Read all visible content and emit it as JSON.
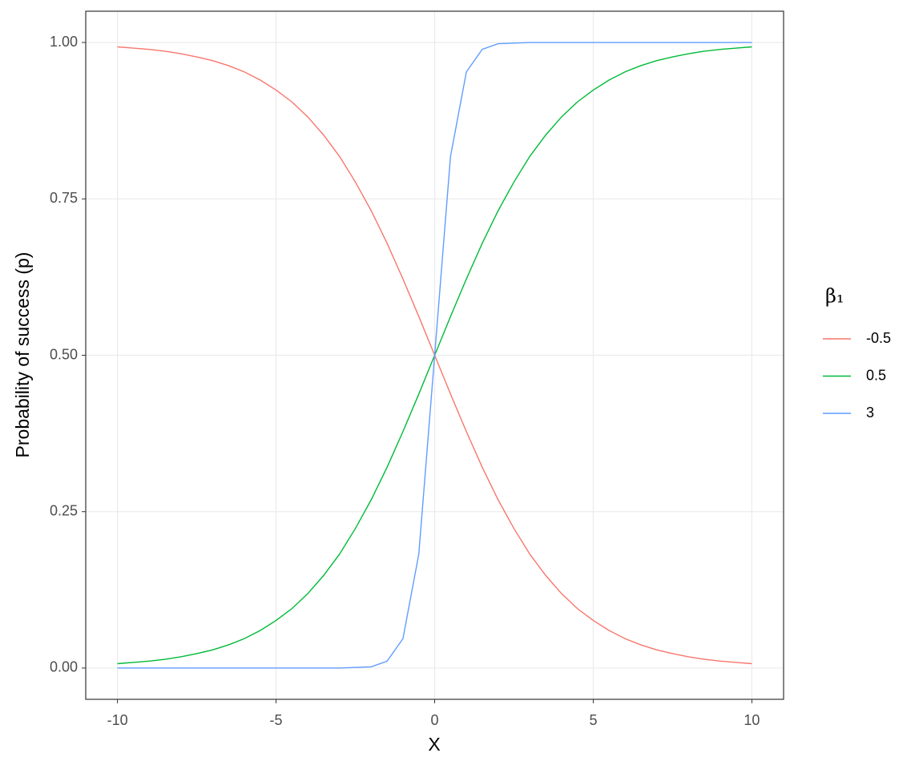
{
  "chart_data": {
    "type": "line",
    "x_label": "X",
    "y_label": "Probability of success (p)",
    "legend_title": "β₁",
    "x": [
      -10,
      -9.5,
      -9,
      -8.5,
      -8,
      -7.5,
      -7,
      -6.5,
      -6,
      -5.5,
      -5,
      -4.5,
      -4,
      -3.5,
      -3,
      -2.5,
      -2,
      -1.5,
      -1,
      -0.5,
      0,
      0.5,
      1,
      1.5,
      2,
      2.5,
      3,
      3.5,
      4,
      4.5,
      5,
      5.5,
      6,
      6.5,
      7,
      7.5,
      8,
      8.5,
      9,
      9.5,
      10
    ],
    "series": [
      {
        "name": "-0.5",
        "color": "#F8766D",
        "values": [
          0.993,
          0.991,
          0.989,
          0.986,
          0.982,
          0.977,
          0.971,
          0.963,
          0.953,
          0.94,
          0.924,
          0.905,
          0.881,
          0.852,
          0.818,
          0.777,
          0.731,
          0.679,
          0.622,
          0.562,
          0.5,
          0.438,
          0.378,
          0.321,
          0.269,
          0.223,
          0.182,
          0.148,
          0.119,
          0.095,
          0.076,
          0.06,
          0.047,
          0.037,
          0.029,
          0.023,
          0.018,
          0.014,
          0.011,
          0.009,
          0.007
        ]
      },
      {
        "name": "0.5",
        "color": "#00BA38",
        "values": [
          0.007,
          0.009,
          0.011,
          0.014,
          0.018,
          0.023,
          0.029,
          0.037,
          0.047,
          0.06,
          0.076,
          0.095,
          0.119,
          0.148,
          0.182,
          0.223,
          0.269,
          0.321,
          0.378,
          0.438,
          0.5,
          0.562,
          0.622,
          0.679,
          0.731,
          0.777,
          0.818,
          0.852,
          0.881,
          0.905,
          0.924,
          0.94,
          0.953,
          0.963,
          0.971,
          0.977,
          0.982,
          0.986,
          0.989,
          0.991,
          0.993
        ]
      },
      {
        "name": "3",
        "color": "#619CFF",
        "values": [
          0,
          0,
          0,
          0,
          0,
          0,
          0,
          0,
          0,
          0,
          0,
          0,
          0,
          0,
          0,
          0.001,
          0.002,
          0.011,
          0.047,
          0.182,
          0.5,
          0.818,
          0.953,
          0.989,
          0.998,
          0.999,
          1,
          1,
          1,
          1,
          1,
          1,
          1,
          1,
          1,
          1,
          1,
          1,
          1,
          1,
          1
        ]
      }
    ],
    "xlim": [
      -11,
      11
    ],
    "xticks": [
      -10,
      -5,
      0,
      5,
      10
    ],
    "ylim": [
      -0.05,
      1.05
    ],
    "yticks": [
      {
        "value": 0,
        "label": "0.00"
      },
      {
        "value": 0.25,
        "label": "0.25"
      },
      {
        "value": 0.5,
        "label": "0.50"
      },
      {
        "value": 0.75,
        "label": "0.75"
      },
      {
        "value": 1,
        "label": "1.00"
      }
    ],
    "grid": true,
    "legend": "right"
  }
}
